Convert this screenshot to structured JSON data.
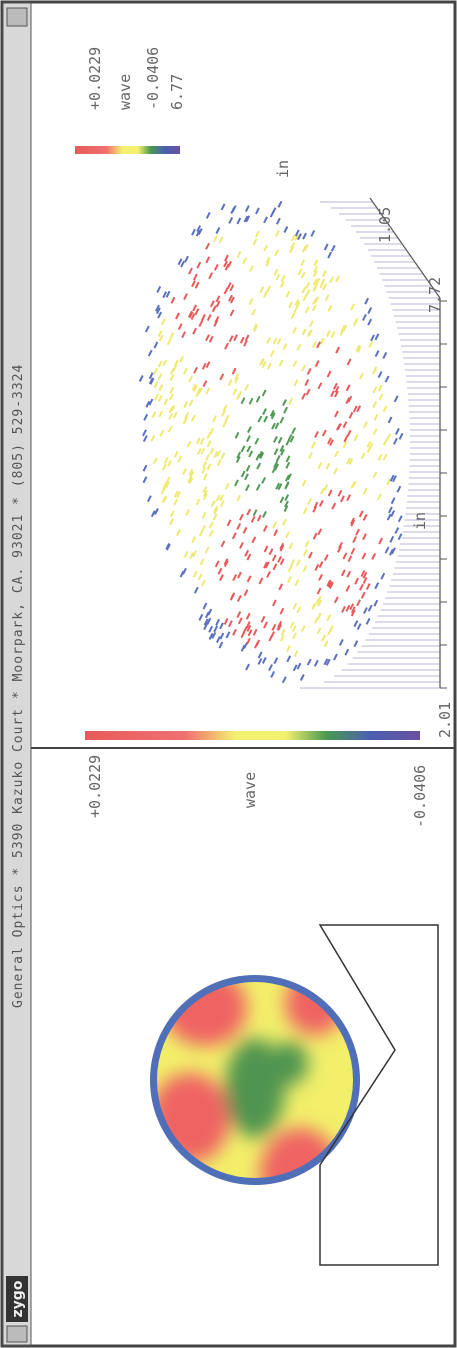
{
  "title_bar": {
    "logo": "zygo",
    "text": "General Optics * 5390 Kazuko Court * Moorpark, CA. 93021 * (805) 529-3324"
  },
  "left_panel": {
    "scale_max": "+0.0229",
    "unit": "wave",
    "scale_min": "-0.0406"
  },
  "right_panel": {
    "scale_max": "+0.0229",
    "unit": "wave",
    "scale_min": "-0.0406",
    "pv": "6.77",
    "axis_unit_y": "in",
    "y_end": "1.05",
    "x_end": "7.72",
    "axis_unit_x": "in",
    "x_start": "2.01"
  }
}
